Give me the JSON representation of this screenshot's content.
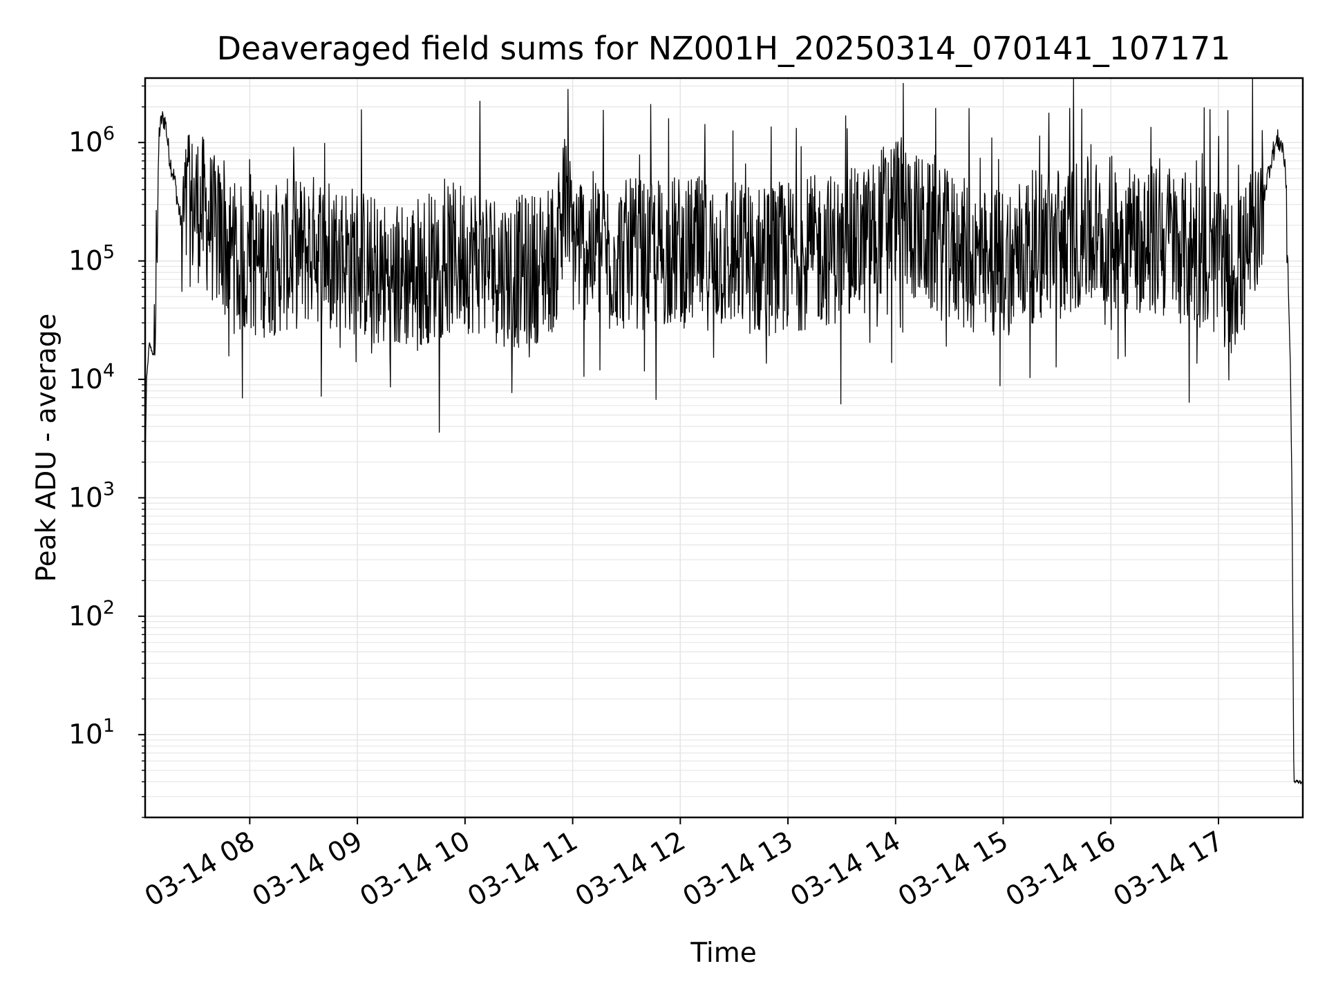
{
  "chart_data": {
    "type": "line",
    "title": "Deaveraged field sums for NZ001H_20250314_070141_107171",
    "xlabel": "Time",
    "ylabel": "Peak ADU - average",
    "y_scale": "log",
    "ylim": [
      2,
      3500000
    ],
    "xlim": [
      "2025-03-14T07:01:41",
      "2025-03-14T17:47:00"
    ],
    "x_tick_labels": [
      "03-14 08",
      "03-14 09",
      "03-14 10",
      "03-14 11",
      "03-14 12",
      "03-14 13",
      "03-14 14",
      "03-14 15",
      "03-14 16",
      "03-14 17"
    ],
    "x_tick_times": [
      "2025-03-14T08:00:00",
      "2025-03-14T09:00:00",
      "2025-03-14T10:00:00",
      "2025-03-14T11:00:00",
      "2025-03-14T12:00:00",
      "2025-03-14T13:00:00",
      "2025-03-14T14:00:00",
      "2025-03-14T15:00:00",
      "2025-03-14T16:00:00",
      "2025-03-14T17:00:00"
    ],
    "y_tick_labels": [
      {
        "base": "10",
        "exp": "1",
        "value": 10
      },
      {
        "base": "10",
        "exp": "2",
        "value": 100
      },
      {
        "base": "10",
        "exp": "3",
        "value": 1000
      },
      {
        "base": "10",
        "exp": "4",
        "value": 10000
      },
      {
        "base": "10",
        "exp": "5",
        "value": 100000
      },
      {
        "base": "10",
        "exp": "6",
        "value": 1000000
      }
    ],
    "grid": true,
    "line_color": "#000000",
    "grid_color": "#e6e6e6",
    "series": [
      {
        "x": [
          "2025-03-14T07:01:41",
          "2025-03-14T07:02:30",
          "2025-03-14T07:04:00",
          "2025-03-14T07:07:00",
          "2025-03-14T07:08:30",
          "2025-03-14T07:09:30",
          "2025-03-14T07:11:00",
          "2025-03-14T07:13:00",
          "2025-03-14T07:15:00",
          "2025-03-14T07:16:30",
          "2025-03-14T07:18:00",
          "2025-03-14T07:20:00",
          "2025-03-14T07:22:00",
          "2025-03-14T07:25:00",
          "2025-03-14T07:30:00",
          "2025-03-14T07:35:00",
          "2025-03-14T07:40:00",
          "2025-03-14T07:45:00",
          "2025-03-14T07:50:00",
          "2025-03-14T07:55:00",
          "2025-03-14T08:00:00",
          "2025-03-14T08:10:00",
          "2025-03-14T08:20:00",
          "2025-03-14T08:30:00",
          "2025-03-14T08:40:00",
          "2025-03-14T08:50:00",
          "2025-03-14T09:00:00",
          "2025-03-14T09:10:00",
          "2025-03-14T09:20:00",
          "2025-03-14T09:30:00",
          "2025-03-14T09:40:00",
          "2025-03-14T09:50:00",
          "2025-03-14T10:00:00",
          "2025-03-14T10:10:00",
          "2025-03-14T10:20:00",
          "2025-03-14T10:30:00",
          "2025-03-14T10:40:00",
          "2025-03-14T10:50:00",
          "2025-03-14T10:55:00",
          "2025-03-14T11:00:00",
          "2025-03-14T11:10:00",
          "2025-03-14T11:20:00",
          "2025-03-14T11:30:00",
          "2025-03-14T11:40:00",
          "2025-03-14T11:50:00",
          "2025-03-14T12:00:00",
          "2025-03-14T12:15:00",
          "2025-03-14T12:30:00",
          "2025-03-14T12:45:00",
          "2025-03-14T13:00:00",
          "2025-03-14T13:15:00",
          "2025-03-14T13:30:00",
          "2025-03-14T13:45:00",
          "2025-03-14T13:55:00",
          "2025-03-14T14:00:00",
          "2025-03-14T14:10:00",
          "2025-03-14T14:20:00",
          "2025-03-14T14:30:00",
          "2025-03-14T14:40:00",
          "2025-03-14T14:50:00",
          "2025-03-14T15:00:00",
          "2025-03-14T15:15:00",
          "2025-03-14T15:30:00",
          "2025-03-14T15:45:00",
          "2025-03-14T16:00:00",
          "2025-03-14T16:10:00",
          "2025-03-14T16:20:00",
          "2025-03-14T16:30:00",
          "2025-03-14T16:40:00",
          "2025-03-14T16:50:00",
          "2025-03-14T17:00:00",
          "2025-03-14T17:05:00",
          "2025-03-14T17:10:00",
          "2025-03-14T17:15:00",
          "2025-03-14T17:20:00",
          "2025-03-14T17:25:00",
          "2025-03-14T17:30:00",
          "2025-03-14T17:33:00",
          "2025-03-14T17:36:00",
          "2025-03-14T17:38:00",
          "2025-03-14T17:39:00",
          "2025-03-14T17:40:00",
          "2025-03-14T17:41:00",
          "2025-03-14T17:42:00",
          "2025-03-14T17:44:00",
          "2025-03-14T17:47:00"
        ],
        "values": [
          2000,
          10000,
          20000,
          15000,
          300000,
          1200000,
          1600000,
          1500000,
          800000,
          600000,
          500000,
          300000,
          200000,
          250000,
          300000,
          250000,
          180000,
          150000,
          110000,
          100000,
          95000,
          100000,
          110000,
          120000,
          130000,
          110000,
          100000,
          80000,
          70000,
          80000,
          90000,
          100000,
          110000,
          100000,
          85000,
          80000,
          90000,
          110000,
          300000,
          150000,
          130000,
          120000,
          110000,
          115000,
          120000,
          120000,
          115000,
          110000,
          100000,
          110000,
          120000,
          130000,
          150000,
          250000,
          280000,
          200000,
          150000,
          130000,
          110000,
          90000,
          100000,
          130000,
          150000,
          170000,
          180000,
          160000,
          150000,
          140000,
          130000,
          120000,
          100000,
          70000,
          80000,
          100000,
          200000,
          350000,
          800000,
          1050000,
          900000,
          400000,
          50000,
          15000,
          1000,
          4,
          4,
          4
        ]
      }
    ]
  }
}
